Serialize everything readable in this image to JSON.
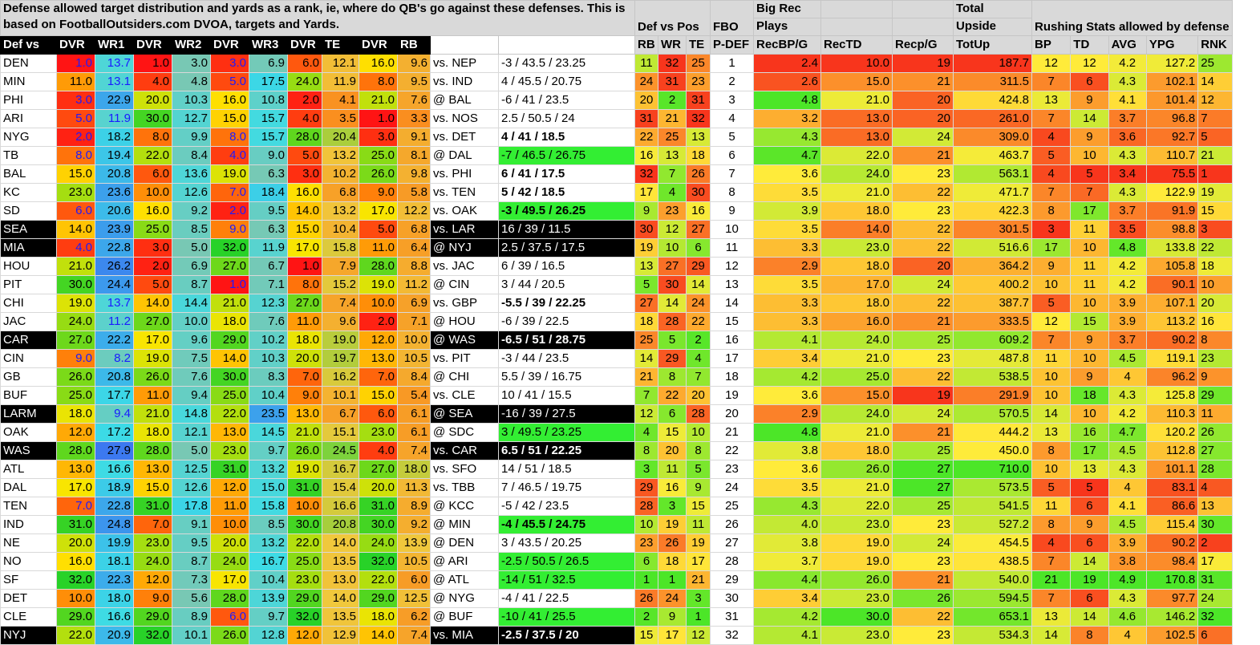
{
  "header": {
    "description": "Defense allowed target distribution and yards as a rank, ie, where do QB's go against these defenses. This is based on FootballOutsiders.com DVOA, targets and Yards.",
    "def_vs_pos": "Def vs Pos",
    "fbo": "FBO",
    "big_rec_line1": "Big Rec",
    "big_rec_line2": "Plays",
    "total_upside_line1": "Total",
    "total_upside_line2": "Upside",
    "rushing": "Rushing Stats allowed by defense"
  },
  "columns": [
    "Def vs",
    "DVR",
    "WR1",
    "DVR",
    "WR2",
    "DVR",
    "WR3",
    "DVR",
    "TE",
    "DVR",
    "RB",
    "",
    "",
    "RB",
    "WR",
    "TE",
    "P-DEF",
    "RecBP/G",
    "RecTD",
    "Recp/G",
    "TotUp",
    "BP",
    "TD",
    "AVG",
    "YPG",
    "RNK"
  ],
  "rows": [
    {
      "team": "DEN",
      "vals": [
        "1.0",
        "13.7",
        "1.0",
        "3.0",
        "3.0",
        "6.9",
        "6.0",
        "12.1",
        "16.0",
        "9.6"
      ],
      "opp": "vs. NEP",
      "spread": "-3 / 43.5 / 23.25",
      "dvp": [
        "11",
        "32",
        "25"
      ],
      "pdef": "1",
      "rec": [
        "2.4",
        "10.0",
        "19",
        "187.7"
      ],
      "rush": [
        "12",
        "12",
        "4.2",
        "127.2",
        "25"
      ],
      "black": false,
      "bold": false,
      "sg": false
    },
    {
      "team": "MIN",
      "vals": [
        "11.0",
        "13.1",
        "4.0",
        "4.8",
        "5.0",
        "17.5",
        "24.0",
        "11.9",
        "8.0",
        "9.5"
      ],
      "opp": "vs. IND",
      "spread": "4 / 45.5 / 20.75",
      "dvp": [
        "24",
        "31",
        "23"
      ],
      "pdef": "2",
      "rec": [
        "2.6",
        "15.0",
        "21",
        "311.5"
      ],
      "rush": [
        "7",
        "6",
        "4.3",
        "102.1",
        "14"
      ],
      "black": false,
      "bold": false,
      "sg": false
    },
    {
      "team": "PHI",
      "vals": [
        "3.0",
        "22.9",
        "20.0",
        "10.3",
        "16.0",
        "10.8",
        "2.0",
        "4.1",
        "21.0",
        "7.6"
      ],
      "opp": "@ BAL",
      "spread": "-6 / 41 / 23.5",
      "dvp": [
        "20",
        "2",
        "31"
      ],
      "pdef": "3",
      "rec": [
        "4.8",
        "21.0",
        "20",
        "424.8"
      ],
      "rush": [
        "13",
        "9",
        "4.1",
        "101.4",
        "12"
      ],
      "black": false,
      "bold": false,
      "sg": false
    },
    {
      "team": "ARI",
      "vals": [
        "5.0",
        "11.9",
        "30.0",
        "12.7",
        "15.0",
        "15.7",
        "4.0",
        "3.5",
        "1.0",
        "3.3"
      ],
      "opp": "vs. NOS",
      "spread": "2.5 / 50.5 / 24",
      "dvp": [
        "31",
        "21",
        "32"
      ],
      "pdef": "4",
      "rec": [
        "3.2",
        "13.0",
        "20",
        "261.0"
      ],
      "rush": [
        "7",
        "14",
        "3.7",
        "96.8",
        "7"
      ],
      "black": false,
      "bold": false,
      "sg": false
    },
    {
      "team": "NYG",
      "vals": [
        "2.0",
        "18.2",
        "8.0",
        "9.9",
        "8.0",
        "15.7",
        "28.0",
        "20.4",
        "3.0",
        "9.1"
      ],
      "opp": "vs. DET",
      "spread": "4 / 41 / 18.5",
      "dvp": [
        "22",
        "25",
        "13"
      ],
      "pdef": "5",
      "rec": [
        "4.3",
        "13.0",
        "24",
        "309.0"
      ],
      "rush": [
        "4",
        "9",
        "3.6",
        "92.7",
        "5"
      ],
      "black": false,
      "bold": true,
      "sg": false
    },
    {
      "team": "TB",
      "vals": [
        "8.0",
        "19.4",
        "22.0",
        "8.4",
        "4.0",
        "9.0",
        "5.0",
        "13.2",
        "25.0",
        "8.1"
      ],
      "opp": "@ DAL",
      "spread": "-7 / 46.5 / 26.75",
      "dvp": [
        "16",
        "13",
        "18"
      ],
      "pdef": "6",
      "rec": [
        "4.7",
        "22.0",
        "21",
        "463.7"
      ],
      "rush": [
        "5",
        "10",
        "4.3",
        "110.7",
        "21"
      ],
      "black": false,
      "bold": false,
      "sg": true
    },
    {
      "team": "BAL",
      "vals": [
        "15.0",
        "20.8",
        "6.0",
        "13.6",
        "19.0",
        "6.3",
        "3.0",
        "10.2",
        "26.0",
        "9.8"
      ],
      "opp": "vs. PHI",
      "spread": "6 / 41 / 17.5",
      "dvp": [
        "32",
        "7",
        "26"
      ],
      "pdef": "7",
      "rec": [
        "3.6",
        "24.0",
        "23",
        "563.1"
      ],
      "rush": [
        "4",
        "5",
        "3.4",
        "75.5",
        "1"
      ],
      "black": false,
      "bold": true,
      "sg": false
    },
    {
      "team": "KC",
      "vals": [
        "23.0",
        "23.6",
        "10.0",
        "12.6",
        "7.0",
        "18.4",
        "16.0",
        "6.8",
        "9.0",
        "5.8"
      ],
      "opp": "vs. TEN",
      "spread": "5 / 42 / 18.5",
      "dvp": [
        "17",
        "4",
        "30"
      ],
      "pdef": "8",
      "rec": [
        "3.5",
        "21.0",
        "22",
        "471.7"
      ],
      "rush": [
        "7",
        "7",
        "4.3",
        "122.9",
        "19"
      ],
      "black": false,
      "bold": true,
      "sg": false
    },
    {
      "team": "SD",
      "vals": [
        "6.0",
        "20.6",
        "16.0",
        "9.2",
        "2.0",
        "9.5",
        "14.0",
        "13.2",
        "17.0",
        "12.2"
      ],
      "opp": "vs. OAK",
      "spread": "-3 / 49.5 / 26.25",
      "dvp": [
        "9",
        "23",
        "16"
      ],
      "pdef": "9",
      "rec": [
        "3.9",
        "18.0",
        "23",
        "422.3"
      ],
      "rush": [
        "8",
        "17",
        "3.7",
        "91.9",
        "15"
      ],
      "black": false,
      "bold": true,
      "sg": true
    },
    {
      "team": "SEA",
      "vals": [
        "14.0",
        "23.9",
        "25.0",
        "8.5",
        "9.0",
        "6.3",
        "15.0",
        "10.4",
        "5.0",
        "6.8"
      ],
      "opp": "vs. LAR",
      "spread": "16 / 39 / 11.5",
      "dvp": [
        "30",
        "12",
        "27"
      ],
      "pdef": "10",
      "rec": [
        "3.5",
        "14.0",
        "22",
        "301.5"
      ],
      "rush": [
        "3",
        "11",
        "3.5",
        "98.8",
        "3"
      ],
      "black": true,
      "bold": false,
      "sg": false
    },
    {
      "team": "MIA",
      "vals": [
        "4.0",
        "22.8",
        "3.0",
        "5.0",
        "32.0",
        "11.9",
        "17.0",
        "15.8",
        "11.0",
        "6.4"
      ],
      "opp": "@ NYJ",
      "spread": "2.5 / 37.5 / 17.5",
      "dvp": [
        "19",
        "10",
        "6"
      ],
      "pdef": "11",
      "rec": [
        "3.3",
        "23.0",
        "22",
        "516.6"
      ],
      "rush": [
        "17",
        "10",
        "4.8",
        "133.8",
        "22"
      ],
      "black": true,
      "bold": false,
      "sg": false
    },
    {
      "team": "HOU",
      "vals": [
        "21.0",
        "26.2",
        "2.0",
        "6.9",
        "27.0",
        "6.7",
        "1.0",
        "7.9",
        "28.0",
        "8.8"
      ],
      "opp": "vs. JAC",
      "spread": "6 / 39 / 16.5",
      "dvp": [
        "13",
        "27",
        "29"
      ],
      "pdef": "12",
      "rec": [
        "2.9",
        "18.0",
        "20",
        "364.2"
      ],
      "rush": [
        "9",
        "11",
        "4.2",
        "105.8",
        "18"
      ],
      "black": false,
      "bold": false,
      "sg": false
    },
    {
      "team": "PIT",
      "vals": [
        "30.0",
        "24.4",
        "5.0",
        "8.7",
        "1.0",
        "7.1",
        "8.0",
        "15.2",
        "19.0",
        "11.2"
      ],
      "opp": "@ CIN",
      "spread": "3 / 44 / 20.5",
      "dvp": [
        "5",
        "30",
        "14"
      ],
      "pdef": "13",
      "rec": [
        "3.5",
        "17.0",
        "24",
        "400.2"
      ],
      "rush": [
        "10",
        "11",
        "4.2",
        "90.1",
        "10"
      ],
      "black": false,
      "bold": false,
      "sg": false
    },
    {
      "team": "CHI",
      "vals": [
        "19.0",
        "13.7",
        "14.0",
        "14.4",
        "21.0",
        "12.3",
        "27.0",
        "7.4",
        "10.0",
        "6.9"
      ],
      "opp": "vs. GBP",
      "spread": "-5.5 / 39 / 22.25",
      "dvp": [
        "27",
        "14",
        "24"
      ],
      "pdef": "14",
      "rec": [
        "3.3",
        "18.0",
        "22",
        "387.7"
      ],
      "rush": [
        "5",
        "10",
        "3.9",
        "107.1",
        "20"
      ],
      "black": false,
      "bold": true,
      "sg": false
    },
    {
      "team": "JAC",
      "vals": [
        "24.0",
        "11.2",
        "27.0",
        "10.0",
        "18.0",
        "7.6",
        "11.0",
        "9.6",
        "2.0",
        "7.1"
      ],
      "opp": "@ HOU",
      "spread": "-6 / 39 / 22.5",
      "dvp": [
        "18",
        "28",
        "22"
      ],
      "pdef": "15",
      "rec": [
        "3.3",
        "16.0",
        "21",
        "333.5"
      ],
      "rush": [
        "12",
        "15",
        "3.9",
        "113.2",
        "16"
      ],
      "black": false,
      "bold": false,
      "sg": false
    },
    {
      "team": "CAR",
      "vals": [
        "27.0",
        "22.2",
        "17.0",
        "9.6",
        "29.0",
        "10.2",
        "18.0",
        "19.0",
        "12.0",
        "10.0"
      ],
      "opp": "@ WAS",
      "spread": "-6.5 / 51 / 28.75",
      "dvp": [
        "25",
        "5",
        "2"
      ],
      "pdef": "16",
      "rec": [
        "4.1",
        "24.0",
        "25",
        "609.2"
      ],
      "rush": [
        "7",
        "9",
        "3.7",
        "90.2",
        "8"
      ],
      "black": true,
      "bold": true,
      "sg": false
    },
    {
      "team": "CIN",
      "vals": [
        "9.0",
        "8.2",
        "19.0",
        "7.5",
        "14.0",
        "10.3",
        "20.0",
        "19.7",
        "13.0",
        "10.5"
      ],
      "opp": "vs. PIT",
      "spread": "-3 / 44 / 23.5",
      "dvp": [
        "14",
        "29",
        "4"
      ],
      "pdef": "17",
      "rec": [
        "3.4",
        "21.0",
        "23",
        "487.8"
      ],
      "rush": [
        "11",
        "10",
        "4.5",
        "119.1",
        "23"
      ],
      "black": false,
      "bold": false,
      "sg": false
    },
    {
      "team": "GB",
      "vals": [
        "26.0",
        "20.8",
        "26.0",
        "7.6",
        "30.0",
        "8.3",
        "7.0",
        "16.2",
        "7.0",
        "8.4"
      ],
      "opp": "@ CHI",
      "spread": "5.5 / 39 / 16.75",
      "dvp": [
        "21",
        "8",
        "7"
      ],
      "pdef": "18",
      "rec": [
        "4.2",
        "25.0",
        "22",
        "538.5"
      ],
      "rush": [
        "10",
        "9",
        "4",
        "96.2",
        "9"
      ],
      "black": false,
      "bold": false,
      "sg": false
    },
    {
      "team": "BUF",
      "vals": [
        "25.0",
        "17.7",
        "11.0",
        "9.4",
        "25.0",
        "10.4",
        "9.0",
        "10.1",
        "15.0",
        "5.4"
      ],
      "opp": "vs. CLE",
      "spread": "10 / 41 / 15.5",
      "dvp": [
        "7",
        "22",
        "20"
      ],
      "pdef": "19",
      "rec": [
        "3.6",
        "15.0",
        "19",
        "291.9"
      ],
      "rush": [
        "10",
        "18",
        "4.3",
        "125.8",
        "29"
      ],
      "black": false,
      "bold": false,
      "sg": false
    },
    {
      "team": "LARM",
      "vals": [
        "18.0",
        "9.4",
        "21.0",
        "14.8",
        "22.0",
        "23.5",
        "13.0",
        "6.7",
        "6.0",
        "6.1"
      ],
      "opp": "@ SEA",
      "spread": "-16 / 39 / 27.5",
      "dvp": [
        "12",
        "6",
        "28"
      ],
      "pdef": "20",
      "rec": [
        "2.9",
        "24.0",
        "24",
        "570.5"
      ],
      "rush": [
        "14",
        "10",
        "4.2",
        "110.3",
        "11"
      ],
      "black": true,
      "bold": false,
      "sg": false
    },
    {
      "team": "OAK",
      "vals": [
        "12.0",
        "17.2",
        "18.0",
        "12.1",
        "13.0",
        "14.5",
        "21.0",
        "15.1",
        "23.0",
        "6.1"
      ],
      "opp": "@ SDC",
      "spread": "3 / 49.5 / 23.25",
      "dvp": [
        "4",
        "15",
        "10"
      ],
      "pdef": "21",
      "rec": [
        "4.8",
        "21.0",
        "21",
        "444.2"
      ],
      "rush": [
        "13",
        "16",
        "4.7",
        "120.2",
        "26"
      ],
      "black": false,
      "bold": false,
      "sg": true
    },
    {
      "team": "WAS",
      "vals": [
        "28.0",
        "27.9",
        "28.0",
        "5.0",
        "23.0",
        "9.7",
        "26.0",
        "24.5",
        "4.0",
        "7.4"
      ],
      "opp": "vs. CAR",
      "spread": "6.5 / 51 / 22.25",
      "dvp": [
        "8",
        "20",
        "8"
      ],
      "pdef": "22",
      "rec": [
        "3.8",
        "18.0",
        "25",
        "450.0"
      ],
      "rush": [
        "8",
        "17",
        "4.5",
        "112.8",
        "27"
      ],
      "black": true,
      "bold": true,
      "sg": false
    },
    {
      "team": "ATL",
      "vals": [
        "13.0",
        "16.6",
        "13.0",
        "12.5",
        "31.0",
        "13.2",
        "19.0",
        "16.7",
        "27.0",
        "18.0"
      ],
      "opp": "vs. SFO",
      "spread": "14 / 51 / 18.5",
      "dvp": [
        "3",
        "11",
        "5"
      ],
      "pdef": "23",
      "rec": [
        "3.6",
        "26.0",
        "27",
        "710.0"
      ],
      "rush": [
        "10",
        "13",
        "4.3",
        "101.1",
        "28"
      ],
      "black": false,
      "bold": false,
      "sg": false
    },
    {
      "team": "DAL",
      "vals": [
        "17.0",
        "18.9",
        "15.0",
        "12.6",
        "12.0",
        "15.0",
        "31.0",
        "15.4",
        "20.0",
        "11.3"
      ],
      "opp": "vs. TBB",
      "spread": "7 / 46.5 / 19.75",
      "dvp": [
        "29",
        "16",
        "9"
      ],
      "pdef": "24",
      "rec": [
        "3.5",
        "21.0",
        "27",
        "573.5"
      ],
      "rush": [
        "5",
        "5",
        "4",
        "83.1",
        "4"
      ],
      "black": false,
      "bold": false,
      "sg": false
    },
    {
      "team": "TEN",
      "vals": [
        "7.0",
        "22.8",
        "31.0",
        "17.8",
        "11.0",
        "15.8",
        "10.0",
        "16.6",
        "31.0",
        "8.9"
      ],
      "opp": "@ KCC",
      "spread": "-5 / 42 / 23.5",
      "dvp": [
        "28",
        "3",
        "15"
      ],
      "pdef": "25",
      "rec": [
        "4.3",
        "22.0",
        "25",
        "541.5"
      ],
      "rush": [
        "11",
        "6",
        "4.1",
        "86.6",
        "13"
      ],
      "black": false,
      "bold": false,
      "sg": false
    },
    {
      "team": "IND",
      "vals": [
        "31.0",
        "24.8",
        "7.0",
        "9.1",
        "10.0",
        "8.5",
        "30.0",
        "20.8",
        "30.0",
        "9.2"
      ],
      "opp": "@ MIN",
      "spread": "-4 / 45.5 / 24.75",
      "dvp": [
        "10",
        "19",
        "11"
      ],
      "pdef": "26",
      "rec": [
        "4.0",
        "23.0",
        "23",
        "527.2"
      ],
      "rush": [
        "8",
        "9",
        "4.5",
        "115.4",
        "30"
      ],
      "black": false,
      "bold": true,
      "sg": true
    },
    {
      "team": "NE",
      "vals": [
        "20.0",
        "19.9",
        "23.0",
        "9.5",
        "20.0",
        "13.2",
        "22.0",
        "14.0",
        "24.0",
        "13.9"
      ],
      "opp": "@ DEN",
      "spread": "3 / 43.5 / 20.25",
      "dvp": [
        "23",
        "26",
        "19"
      ],
      "pdef": "27",
      "rec": [
        "3.8",
        "19.0",
        "24",
        "454.5"
      ],
      "rush": [
        "4",
        "6",
        "3.9",
        "90.2",
        "2"
      ],
      "black": false,
      "bold": false,
      "sg": false
    },
    {
      "team": "NO",
      "vals": [
        "16.0",
        "18.1",
        "24.0",
        "8.7",
        "24.0",
        "16.7",
        "25.0",
        "13.5",
        "32.0",
        "10.5"
      ],
      "opp": "@ ARI",
      "spread": "-2.5 / 50.5 / 26.5",
      "dvp": [
        "6",
        "18",
        "17"
      ],
      "pdef": "28",
      "rec": [
        "3.7",
        "19.0",
        "23",
        "438.5"
      ],
      "rush": [
        "7",
        "14",
        "3.8",
        "98.4",
        "17"
      ],
      "black": false,
      "bold": false,
      "sg": true
    },
    {
      "team": "SF",
      "vals": [
        "32.0",
        "22.3",
        "12.0",
        "7.3",
        "17.0",
        "10.4",
        "23.0",
        "13.0",
        "22.0",
        "6.0"
      ],
      "opp": "@ ATL",
      "spread": "-14 / 51 / 32.5",
      "dvp": [
        "1",
        "1",
        "21"
      ],
      "pdef": "29",
      "rec": [
        "4.4",
        "26.0",
        "21",
        "540.0"
      ],
      "rush": [
        "21",
        "19",
        "4.9",
        "170.8",
        "31"
      ],
      "black": false,
      "bold": false,
      "sg": true
    },
    {
      "team": "DET",
      "vals": [
        "10.0",
        "18.0",
        "9.0",
        "5.6",
        "28.0",
        "13.9",
        "29.0",
        "14.0",
        "29.0",
        "12.5"
      ],
      "opp": "@ NYG",
      "spread": "-4 / 41 / 22.5",
      "dvp": [
        "26",
        "24",
        "3"
      ],
      "pdef": "30",
      "rec": [
        "3.4",
        "23.0",
        "26",
        "594.5"
      ],
      "rush": [
        "7",
        "6",
        "4.3",
        "97.7",
        "24"
      ],
      "black": false,
      "bold": false,
      "sg": false
    },
    {
      "team": "CLE",
      "vals": [
        "29.0",
        "16.6",
        "29.0",
        "8.9",
        "6.0",
        "9.7",
        "32.0",
        "13.5",
        "18.0",
        "6.2"
      ],
      "opp": "@ BUF",
      "spread": "-10 / 41 / 25.5",
      "dvp": [
        "2",
        "9",
        "1"
      ],
      "pdef": "31",
      "rec": [
        "4.2",
        "30.0",
        "22",
        "653.1"
      ],
      "rush": [
        "13",
        "14",
        "4.6",
        "146.2",
        "32"
      ],
      "black": false,
      "bold": false,
      "sg": true
    },
    {
      "team": "NYJ",
      "vals": [
        "22.0",
        "20.9",
        "32.0",
        "10.1",
        "26.0",
        "12.8",
        "12.0",
        "12.9",
        "14.0",
        "7.4"
      ],
      "opp": "vs. MIA",
      "spread": "-2.5 / 37.5 / 20",
      "dvp": [
        "15",
        "17",
        "12"
      ],
      "pdef": "32",
      "rec": [
        "4.1",
        "23.0",
        "23",
        "534.3"
      ],
      "rush": [
        "14",
        "8",
        "4",
        "102.5",
        "6"
      ],
      "black": true,
      "bold": true,
      "sg": false
    }
  ]
}
